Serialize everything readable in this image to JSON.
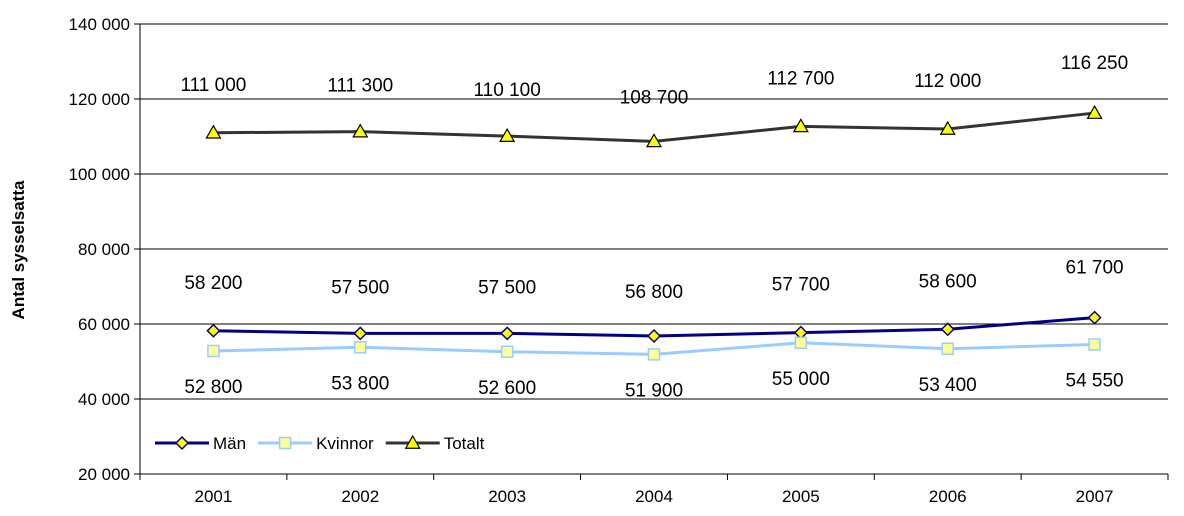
{
  "chart_data": {
    "type": "line",
    "ylabel": "Antal sysselsatta",
    "xlabel": "",
    "title": "",
    "categories": [
      "2001",
      "2002",
      "2003",
      "2004",
      "2005",
      "2006",
      "2007"
    ],
    "ylim": [
      20000,
      140000
    ],
    "yticks": [
      20000,
      40000,
      60000,
      80000,
      100000,
      120000,
      140000
    ],
    "ytick_labels": [
      "20 000",
      "40 000",
      "60 000",
      "80 000",
      "100 000",
      "120 000",
      "140 000"
    ],
    "grid": "horizontal",
    "legend_position": "bottom-left",
    "series": [
      {
        "name": "Män",
        "values": [
          58200,
          57500,
          57500,
          56800,
          57700,
          58600,
          61700
        ],
        "labels": [
          "58 200",
          "57 500",
          "57 500",
          "56 800",
          "57 700",
          "58 600",
          "61 700"
        ],
        "color": "#000080",
        "marker": "diamond",
        "marker_fill": "#ffff00",
        "label_position": "above"
      },
      {
        "name": "Kvinnor",
        "values": [
          52800,
          53800,
          52600,
          51900,
          55000,
          53400,
          54550
        ],
        "labels": [
          "52 800",
          "53 800",
          "52 600",
          "51 900",
          "55 000",
          "53 400",
          "54 550"
        ],
        "color": "#99ccff",
        "marker": "square",
        "marker_fill": "#ffff99",
        "label_position": "below"
      },
      {
        "name": "Totalt",
        "values": [
          111000,
          111300,
          110100,
          108700,
          112700,
          112000,
          116250
        ],
        "labels": [
          "111 000",
          "111 300",
          "110 100",
          "108 700",
          "112 700",
          "112 000",
          "116 250"
        ],
        "color": "#333333",
        "marker": "triangle",
        "marker_fill": "#ffff00",
        "label_position": "above"
      }
    ]
  }
}
